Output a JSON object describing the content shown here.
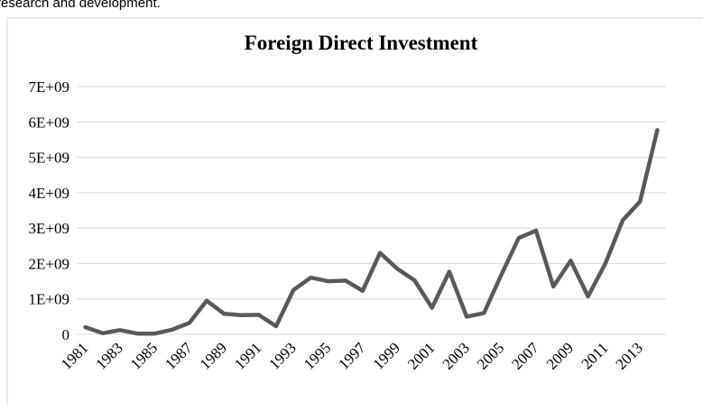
{
  "page_text": "research and development.",
  "chart_data": {
    "type": "line",
    "title": "Foreign Direct Investment",
    "categories": [
      "1981",
      null,
      "1983",
      null,
      "1985",
      null,
      "1987",
      null,
      "1989",
      null,
      "1991",
      null,
      "1993",
      null,
      "1995",
      null,
      "1997",
      null,
      "1999",
      null,
      "2001",
      null,
      "2003",
      null,
      "2005",
      null,
      "2007",
      null,
      "2009",
      null,
      "2011",
      null,
      "2013",
      null
    ],
    "series": [
      {
        "name": "Foreign Direct Investment",
        "color": "#595959",
        "values": [
          200000000,
          30000000,
          120000000,
          20000000,
          20000000,
          130000000,
          320000000,
          950000000,
          580000000,
          540000000,
          550000000,
          230000000,
          1250000000,
          1600000000,
          1500000000,
          1520000000,
          1230000000,
          2300000000,
          1850000000,
          1520000000,
          750000000,
          1770000000,
          500000000,
          600000000,
          1680000000,
          2720000000,
          2930000000,
          1350000000,
          2080000000,
          1070000000,
          2000000000,
          3220000000,
          3750000000,
          5770000000
        ]
      }
    ],
    "ylim": [
      0,
      7000000000
    ],
    "yticks": [
      0,
      {
        "value": 1000000000,
        "label": "1E+09"
      },
      {
        "value": 2000000000,
        "label": "2E+09"
      },
      {
        "value": 3000000000,
        "label": "3E+09"
      },
      {
        "value": 4000000000,
        "label": "4E+09"
      },
      {
        "value": 5000000000,
        "label": "5E+09"
      },
      {
        "value": 6000000000,
        "label": "6E+09"
      },
      {
        "value": 7000000000,
        "label": "7E+09"
      }
    ],
    "grid": true
  }
}
